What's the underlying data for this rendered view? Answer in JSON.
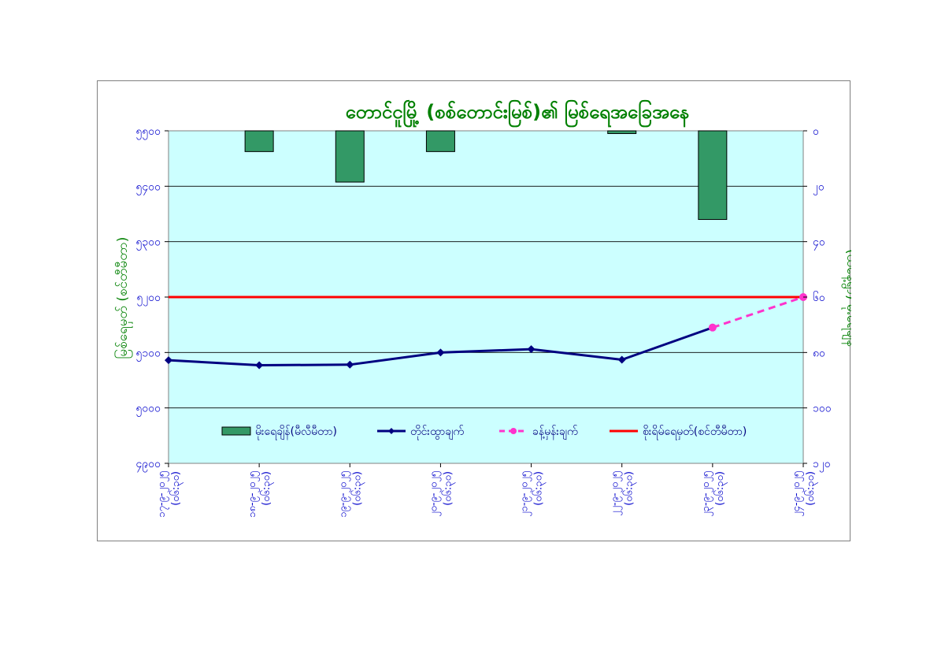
{
  "chart_data": {
    "type": "bar+line",
    "title": "တောင်ငူမြို့ (စစ်တောင်းမြစ်)၏ မြစ်ရေအခြေအနေ",
    "ylabel_left": "မြစ်ရေမှတ် (စင်တီမီတာ)",
    "ylabel_right": "(ယနေ့ရွာ) မိုးရေချိန်",
    "left_axis": {
      "min": 4900,
      "max": 5500,
      "ticks": [
        "၄၉၀၀",
        "၅၀၀၀",
        "၅၁၀၀",
        "၅၂၀၀",
        "၅၃၀၀",
        "၅၄၀၀",
        "၅၅၀၀"
      ],
      "ticks_num": [
        4900,
        5000,
        5100,
        5200,
        5300,
        5400,
        5500
      ],
      "inverted": false
    },
    "right_axis": {
      "min": 0,
      "max": 120,
      "ticks": [
        "၀",
        "၂၀",
        "၄၀",
        "၆၀",
        "၈၀",
        "၁၀၀",
        "၁၂၀"
      ],
      "ticks_num": [
        0,
        20,
        40,
        60,
        80,
        100,
        120
      ],
      "inverted": true
    },
    "categories": [
      [
        "၁၇-၉-၂၀၂၅",
        "(၀၆:၃၀)"
      ],
      [
        "၁၈-၉-၂၀၂၅",
        "(၀၆:၃၀)"
      ],
      [
        "၁၉-၉-၂၀၂၅",
        "(၀၆:၃၀)"
      ],
      [
        "၂၀-၉-၂၀၂၅",
        "(၀၆:၃၀)"
      ],
      [
        "၂၁-၉-၂၀၂၅",
        "(၀၆:၃၀)"
      ],
      [
        "၂၂-၉-၂၀၂၅",
        "(၀၆:၃၀)"
      ],
      [
        "၂၃-၉-၂၀၂၅",
        "(၀၆:၃၀)"
      ],
      [
        "၂၄-၉-၂၀၂၅",
        "(၀၆:၃၀)"
      ]
    ],
    "series": [
      {
        "name": "မိုးရေချိန်(မီလီမီတာ)",
        "kind": "bar",
        "axis": "right",
        "color": "#339966",
        "values": [
          null,
          7.5,
          18.5,
          7.5,
          null,
          1,
          32,
          null
        ]
      },
      {
        "name": "တိုင်းထွာချက်",
        "kind": "line",
        "axis": "left",
        "color": "#000080",
        "values": [
          5086,
          5077,
          5078,
          5100,
          5106,
          5087,
          null,
          null
        ]
      },
      {
        "name": "ခန့်မှန်းချက်",
        "kind": "dashed-line",
        "axis": "left",
        "color": "#ff33cc",
        "values": [
          null,
          null,
          null,
          null,
          null,
          null,
          5145,
          5200
        ]
      },
      {
        "name": "စိုးရိမ်ရေမှတ်(စင်တီမီတာ)",
        "kind": "hline",
        "axis": "left",
        "color": "#ff0000",
        "value": 5200
      }
    ],
    "connector": {
      "from_index": 5,
      "to_index": 6
    },
    "legend_position": "inside-bottom",
    "plot_background": "#ccffff",
    "grid": true
  }
}
